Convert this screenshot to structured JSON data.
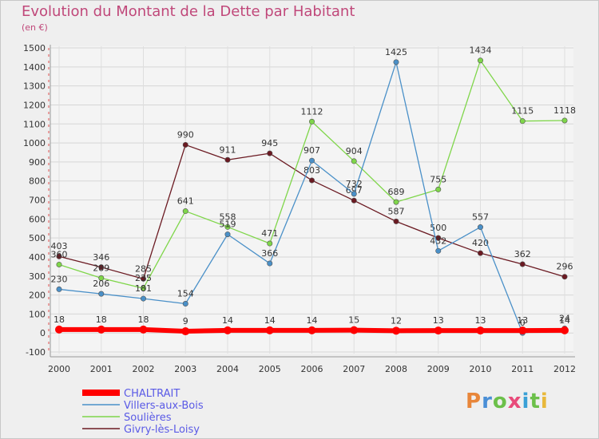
{
  "title": "Evolution du Montant de la Dette par Habitant",
  "subtitle": "(en €)",
  "logo": {
    "letters": [
      "P",
      "r",
      "o",
      "x",
      "i",
      "t",
      "i"
    ],
    "colors": [
      "#e8863a",
      "#4a8fd6",
      "#6cc04a",
      "#e84b7a",
      "#3aa0d6",
      "#6cc04a",
      "#e8b83a"
    ]
  },
  "chart_data": {
    "type": "line",
    "x": [
      "2000",
      "2001",
      "2002",
      "2003",
      "2004",
      "2005",
      "2006",
      "2007",
      "2008",
      "2009",
      "2010",
      "2011",
      "2012"
    ],
    "ylim": [
      -100,
      1500
    ],
    "yticks": [
      "-100",
      "0",
      "100",
      "200",
      "300",
      "400",
      "500",
      "600",
      "700",
      "800",
      "900",
      "1000",
      "1100",
      "1200",
      "1300",
      "1400",
      "1500"
    ],
    "grid": true,
    "legend_position": "bottom-left",
    "series": [
      {
        "name": "Givry-lès-Loisy",
        "color": "#6b1a22",
        "values": [
          403,
          346,
          285,
          990,
          911,
          945,
          803,
          697,
          587,
          500,
          420,
          362,
          296
        ],
        "labels": [
          "403",
          "346",
          "285",
          "990",
          "911",
          "945",
          "803",
          "697",
          "587",
          "500",
          "420",
          "362",
          "296"
        ]
      },
      {
        "name": "Soulières",
        "color": "#7fd64a",
        "values": [
          360,
          289,
          235,
          641,
          558,
          471,
          1112,
          904,
          689,
          755,
          1434,
          1115,
          1118
        ],
        "labels": [
          "360",
          "289",
          "235",
          "641",
          "558",
          "471",
          "1112",
          "904",
          "689",
          "755",
          "1434",
          "1115",
          "1118"
        ]
      },
      {
        "name": "Villers-aux-Bois",
        "color": "#4a90c8",
        "values": [
          230,
          206,
          181,
          154,
          519,
          366,
          907,
          732,
          1425,
          432,
          557,
          0,
          24
        ],
        "labels": [
          "230",
          "206",
          "181",
          "154",
          "519",
          "366",
          "907",
          "732",
          "1425",
          "432",
          "557",
          "0",
          "24"
        ]
      },
      {
        "name": "CHALTRAIT",
        "color": "#ff0000",
        "values": [
          18,
          18,
          18,
          9,
          14,
          14,
          14,
          15,
          12,
          13,
          13,
          13,
          14
        ],
        "labels": [
          "18",
          "18",
          "18",
          "9",
          "14",
          "14",
          "14",
          "15",
          "12",
          "13",
          "13",
          "13",
          "14"
        ]
      }
    ]
  }
}
